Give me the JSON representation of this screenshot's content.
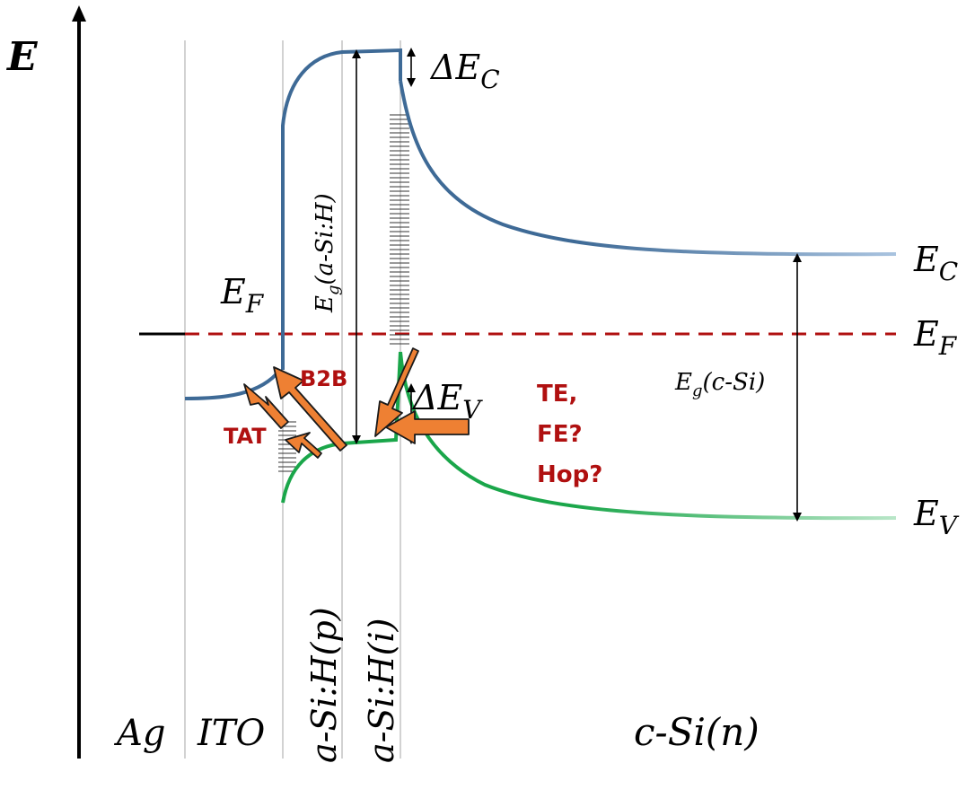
{
  "axis": {
    "label": "E"
  },
  "layers": [
    {
      "id": "ag",
      "label": "Ag"
    },
    {
      "id": "ito",
      "label": "ITO"
    },
    {
      "id": "asi_p",
      "label": "a-Si:H(p)"
    },
    {
      "id": "asi_i",
      "label": "a-Si:H(i)"
    },
    {
      "id": "csi_n",
      "label": "c-Si(n)"
    }
  ],
  "band_labels": {
    "ec": "E",
    "ec_sub": "C",
    "ef_right": "E",
    "ef_right_sub": "F",
    "ev": "E",
    "ev_sub": "V",
    "ef_left": "E",
    "ef_left_sub": "F",
    "delta_ec": "ΔE",
    "delta_ec_sub": "C",
    "delta_ev": "ΔE",
    "delta_ev_sub": "V",
    "eg_asi": "E",
    "eg_asi_sub": "g",
    "eg_asi_rest": "(a-Si:H)",
    "eg_csi": "E",
    "eg_csi_sub": "g",
    "eg_csi_rest": "(c-Si)"
  },
  "mechanisms": {
    "b2b": "B2B",
    "tat": "TAT",
    "te": "TE,",
    "fe": "FE?",
    "hop": "Hop?"
  },
  "colors": {
    "conduction_band": "#3e6a96",
    "conduction_band_fade": "#a9c3df",
    "valence_band": "#1aa64a",
    "valence_band_fade": "#b9e6c8",
    "fermi_level": "#b01010",
    "arrow_fill": "#ee8033",
    "arrow_stroke": "#1a1a1a",
    "mechanism_text": "#b01010",
    "layer_divider": "#b5b5b5"
  }
}
